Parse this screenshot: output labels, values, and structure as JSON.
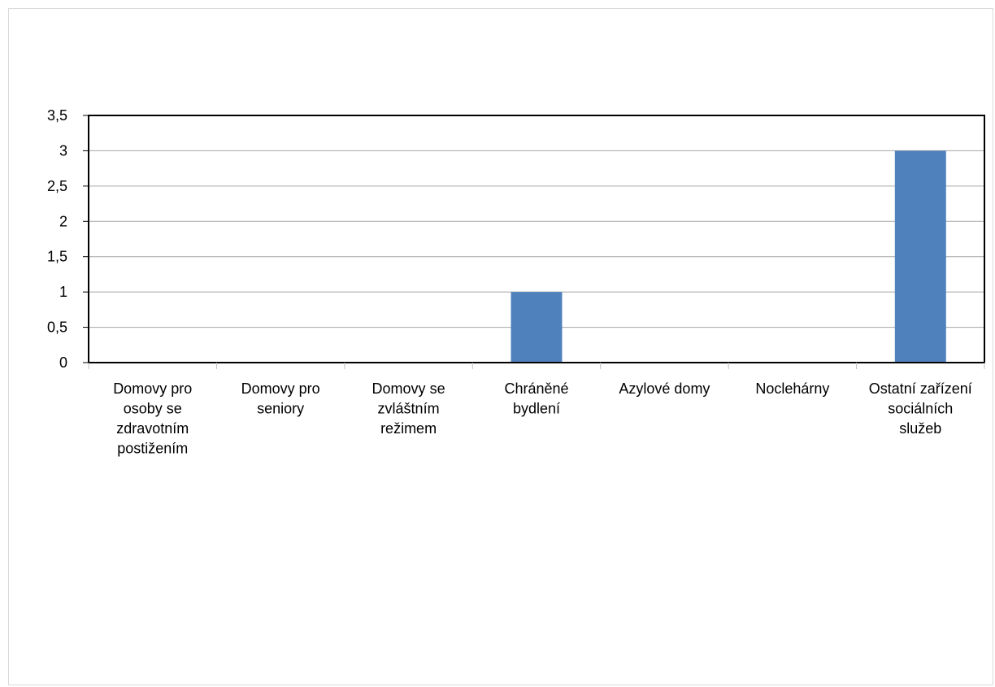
{
  "chart_data": {
    "type": "bar",
    "title": "",
    "xlabel": "",
    "ylabel": "",
    "categories": [
      "Domovy pro osoby se zdravotním postižením",
      "Domovy pro seniory",
      "Domovy se zvláštním režimem",
      "Chráněné bydlení",
      "Azylové domy",
      "Noclehárny",
      "Ostatní zařízení sociálních služeb"
    ],
    "category_lines": [
      [
        "Domovy pro",
        "osoby se",
        "zdravotním",
        "postižením"
      ],
      [
        "Domovy pro",
        "seniory"
      ],
      [
        "Domovy se",
        "zvláštním",
        "režimem"
      ],
      [
        "Chráněné",
        "bydlení"
      ],
      [
        "Azylové domy"
      ],
      [
        "Noclehárny"
      ],
      [
        "Ostatní zařízení",
        "sociálních",
        "služeb"
      ]
    ],
    "values": [
      0,
      0,
      0,
      1,
      0,
      0,
      3
    ],
    "ylim": [
      0,
      3.5
    ],
    "yticks": [
      0,
      0.5,
      1,
      1.5,
      2,
      2.5,
      3,
      3.5
    ],
    "ytick_labels": [
      "0",
      "0,5",
      "1",
      "1,5",
      "2",
      "2,5",
      "3",
      "3,5"
    ],
    "grid": true,
    "legend": "none",
    "bar_color": "#4f81bd",
    "gridline_color": "#a6a6a6",
    "axis_color": "#000000"
  }
}
